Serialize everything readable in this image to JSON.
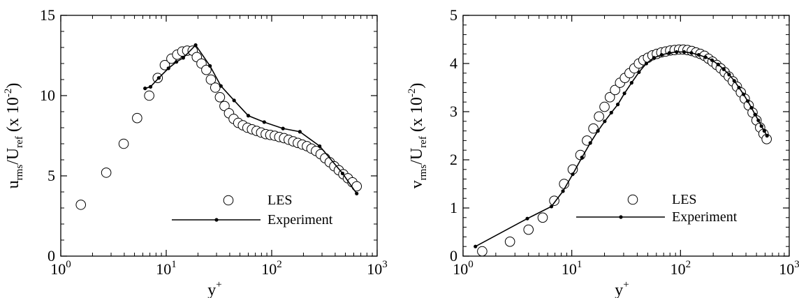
{
  "chart_data": [
    {
      "type": "scatter",
      "xscale": "log",
      "xlim": [
        1,
        1000
      ],
      "ylim": [
        0,
        15
      ],
      "x_ticks": [
        1,
        10,
        100,
        1000
      ],
      "x_tick_labels": [
        {
          "base": "10",
          "exp": "0"
        },
        {
          "base": "10",
          "exp": "1"
        },
        {
          "base": "10",
          "exp": "2"
        },
        {
          "base": "10",
          "exp": "3"
        }
      ],
      "y_ticks": [
        0,
        5,
        10,
        15
      ],
      "y_tick_labels": [
        "0",
        "5",
        "10",
        "15"
      ],
      "xlabel": {
        "main": "y",
        "sup": "+"
      },
      "ylabel": {
        "p1": "u",
        "s1": "rms",
        "p2": "/U",
        "s2": "ref",
        "p3": " (x 10",
        "s3": "-2",
        "p4": ")"
      },
      "grid": false,
      "legend_position": "lower-right",
      "series": [
        {
          "name": "LES",
          "style": "open-circle",
          "x": [
            1.55,
            2.7,
            3.95,
            5.3,
            6.9,
            8.3,
            9.7,
            11.2,
            12.7,
            14.2,
            15.8,
            17.8,
            19.5,
            21.6,
            24,
            26.5,
            29.2,
            32.3,
            35.7,
            39.4,
            43.6,
            48.2,
            53.3,
            58.9,
            65,
            71.9,
            79.4,
            87.8,
            97,
            107,
            118,
            131,
            145,
            160,
            177,
            195,
            216,
            238,
            263,
            291,
            321,
            355,
            392,
            433,
            478,
            528,
            583,
            640
          ],
          "y": [
            3.2,
            5.2,
            7.0,
            8.6,
            10.0,
            11.1,
            11.9,
            12.3,
            12.55,
            12.75,
            12.8,
            12.8,
            12.4,
            12.0,
            11.6,
            11.0,
            10.5,
            9.9,
            9.35,
            8.9,
            8.55,
            8.3,
            8.15,
            8.0,
            7.9,
            7.8,
            7.7,
            7.6,
            7.55,
            7.5,
            7.42,
            7.35,
            7.25,
            7.15,
            7.05,
            6.95,
            6.85,
            6.7,
            6.55,
            6.35,
            6.1,
            5.85,
            5.6,
            5.35,
            5.1,
            4.85,
            4.6,
            4.35
          ]
        },
        {
          "name": "Experiment",
          "style": "line-dot",
          "x": [
            6.3,
            7.1,
            8.5,
            10.5,
            12.5,
            14.5,
            19.0,
            26,
            33,
            44,
            60,
            85,
            128,
            185,
            285,
            470,
            640
          ],
          "y": [
            10.45,
            10.55,
            11.1,
            11.7,
            12.1,
            12.35,
            13.15,
            11.85,
            10.6,
            9.7,
            8.75,
            8.35,
            7.95,
            7.75,
            6.85,
            5.15,
            3.9
          ]
        }
      ]
    },
    {
      "type": "scatter",
      "xscale": "log",
      "xlim": [
        1,
        1000
      ],
      "ylim": [
        0,
        5
      ],
      "x_ticks": [
        1,
        10,
        100,
        1000
      ],
      "x_tick_labels": [
        {
          "base": "10",
          "exp": "0"
        },
        {
          "base": "10",
          "exp": "1"
        },
        {
          "base": "10",
          "exp": "2"
        },
        {
          "base": "10",
          "exp": "3"
        }
      ],
      "y_ticks": [
        0,
        1,
        2,
        3,
        4,
        5
      ],
      "y_tick_labels": [
        "0",
        "1",
        "2",
        "3",
        "4",
        "5"
      ],
      "xlabel": {
        "main": "y",
        "sup": "+"
      },
      "ylabel": {
        "p1": "v",
        "s1": "rms",
        "p2": "/U",
        "s2": "ref",
        "p3": " (x 10",
        "s3": "-2",
        "p4": ")"
      },
      "grid": false,
      "legend_position": "lower-right",
      "series": [
        {
          "name": "LES",
          "style": "open-circle",
          "x": [
            1.5,
            2.7,
            4.0,
            5.4,
            6.9,
            8.5,
            10.2,
            12.0,
            13.8,
            15.8,
            17.8,
            20.0,
            22.4,
            25.0,
            27.8,
            30.8,
            34.0,
            37.6,
            41.4,
            45.6,
            50.2,
            55.2,
            60.6,
            66.6,
            73.2,
            80.4,
            88.3,
            97,
            106,
            116,
            127,
            139,
            152,
            166,
            181,
            197,
            215,
            234,
            255,
            278,
            303,
            330,
            359,
            390,
            424,
            460,
            500,
            540,
            580,
            620
          ],
          "y": [
            0.1,
            0.3,
            0.55,
            0.8,
            1.15,
            1.5,
            1.8,
            2.1,
            2.4,
            2.65,
            2.9,
            3.1,
            3.3,
            3.45,
            3.6,
            3.7,
            3.8,
            3.9,
            4.0,
            4.07,
            4.12,
            4.17,
            4.2,
            4.23,
            4.25,
            4.27,
            4.28,
            4.29,
            4.29,
            4.28,
            4.26,
            4.23,
            4.2,
            4.16,
            4.1,
            4.04,
            3.97,
            3.9,
            3.82,
            3.73,
            3.63,
            3.52,
            3.4,
            3.27,
            3.13,
            2.98,
            2.82,
            2.67,
            2.54,
            2.43
          ]
        },
        {
          "name": "Experiment",
          "style": "line-dot",
          "x": [
            1.3,
            3.9,
            6.5,
            8.3,
            10.2,
            12.4,
            14.8,
            17.4,
            20.1,
            23.1,
            26.5,
            30.5,
            35.5,
            41.5,
            48.5,
            57,
            67,
            79,
            92,
            108,
            126,
            147,
            170,
            195,
            222,
            250,
            280,
            312,
            345,
            380,
            415,
            450,
            485,
            520,
            555,
            590,
            625
          ],
          "y": [
            0.2,
            0.78,
            1.03,
            1.35,
            1.7,
            2.05,
            2.35,
            2.6,
            2.8,
            2.98,
            3.15,
            3.38,
            3.6,
            3.82,
            4.0,
            4.12,
            4.18,
            4.22,
            4.24,
            4.24,
            4.22,
            4.18,
            4.13,
            4.07,
            3.98,
            3.88,
            3.77,
            3.64,
            3.5,
            3.36,
            3.22,
            3.08,
            2.94,
            2.82,
            2.7,
            2.6,
            2.5
          ]
        }
      ]
    }
  ]
}
